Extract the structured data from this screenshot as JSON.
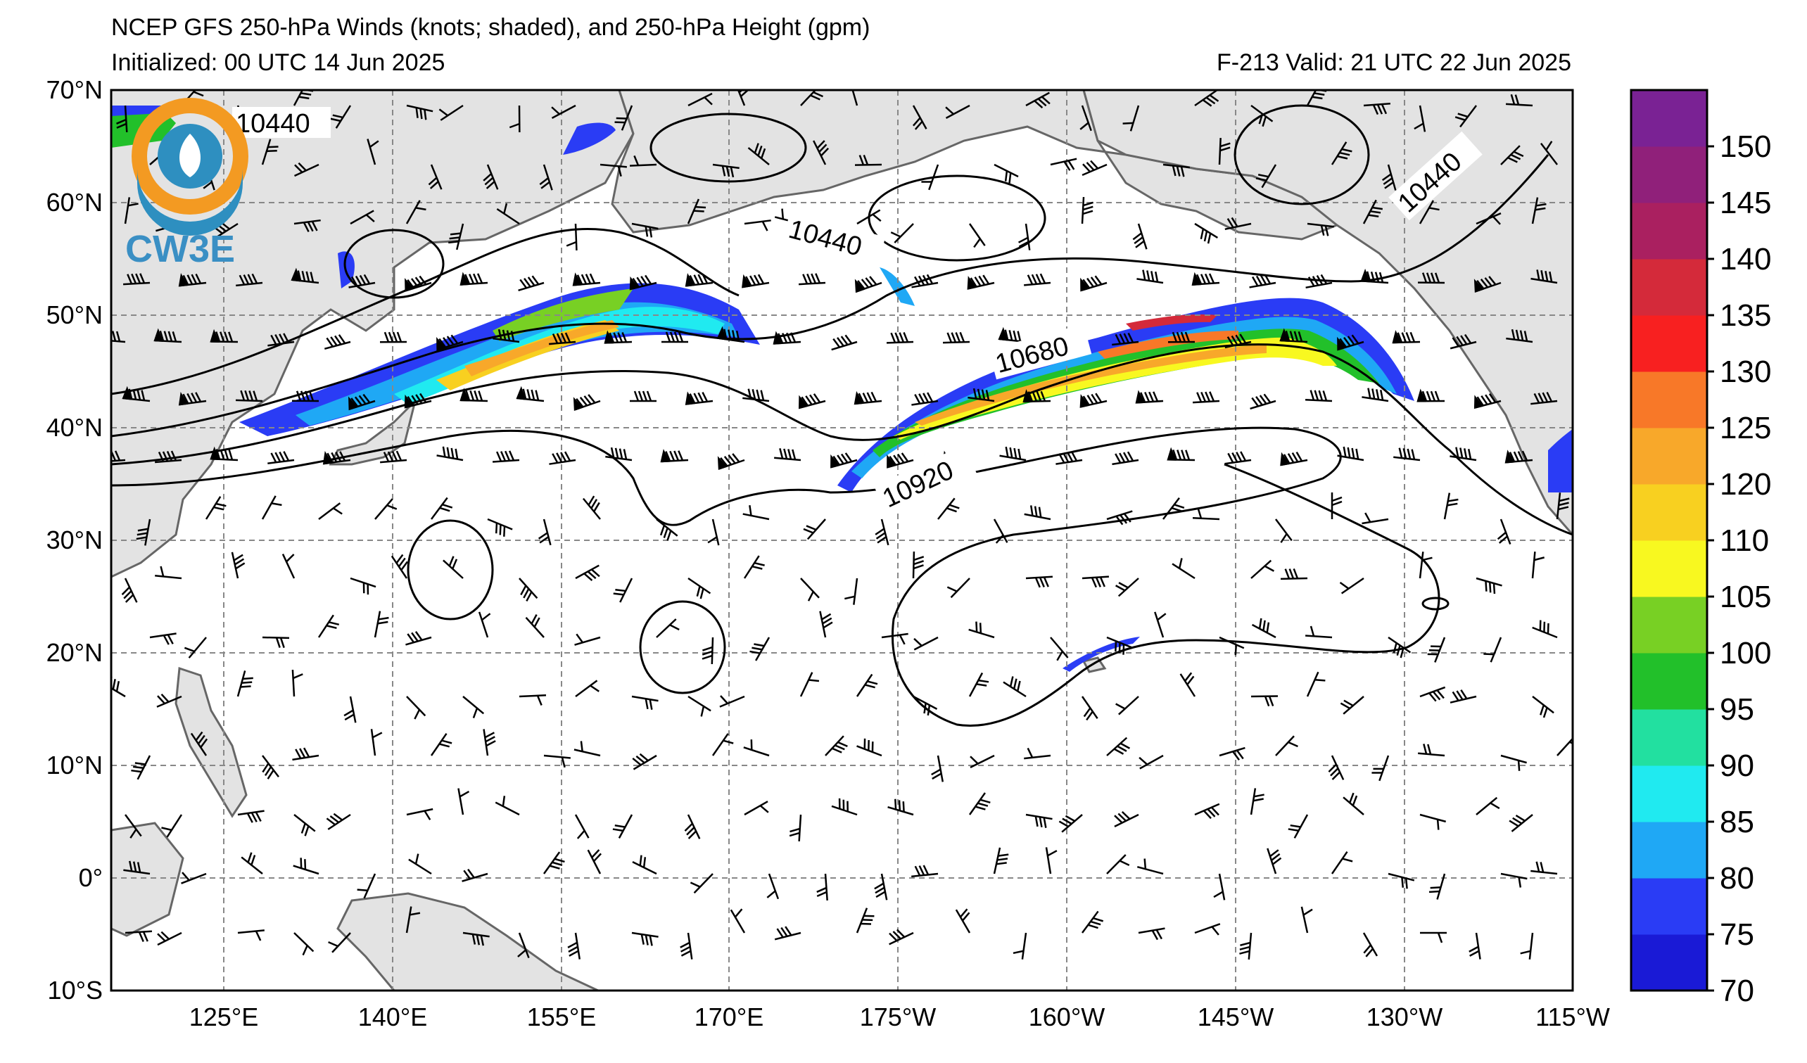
{
  "title": {
    "line1": "NCEP GFS 250-hPa Winds (knots; shaded), and 250-hPa Height (gpm)",
    "initialized": "Initialized: 00 UTC 14 Jun 2025",
    "valid": "F-213  Valid: 21 UTC 22 Jun 2025"
  },
  "logo": {
    "text": "CW3E"
  },
  "axes": {
    "lat_labels": [
      "70°N",
      "60°N",
      "50°N",
      "40°N",
      "30°N",
      "20°N",
      "10°N",
      "0°",
      "10°S"
    ],
    "lon_labels": [
      "125°E",
      "140°E",
      "155°E",
      "170°E",
      "175°W",
      "160°W",
      "145°W",
      "130°W",
      "115°W"
    ],
    "lat_range": [
      -10,
      70
    ],
    "lon_range": [
      "110°E",
      "115°W"
    ],
    "grid": true
  },
  "colorbar": {
    "labels": [
      "70",
      "75",
      "80",
      "85",
      "90",
      "95",
      "100",
      "105",
      "110",
      "120",
      "125",
      "130",
      "135",
      "140",
      "145",
      "150"
    ],
    "colors": [
      "#1a1ad6",
      "#2a3cf5",
      "#1fa8f5",
      "#20eaf0",
      "#22e0a0",
      "#22c02a",
      "#78d024",
      "#f8f820",
      "#f8d020",
      "#f8a82a",
      "#f87828",
      "#f82020",
      "#d42a3a",
      "#aa2060",
      "#90207a",
      "#7a2294"
    ]
  },
  "contours": {
    "labels": [
      "10440",
      "10440",
      "10440",
      "10680",
      "10920"
    ]
  }
}
